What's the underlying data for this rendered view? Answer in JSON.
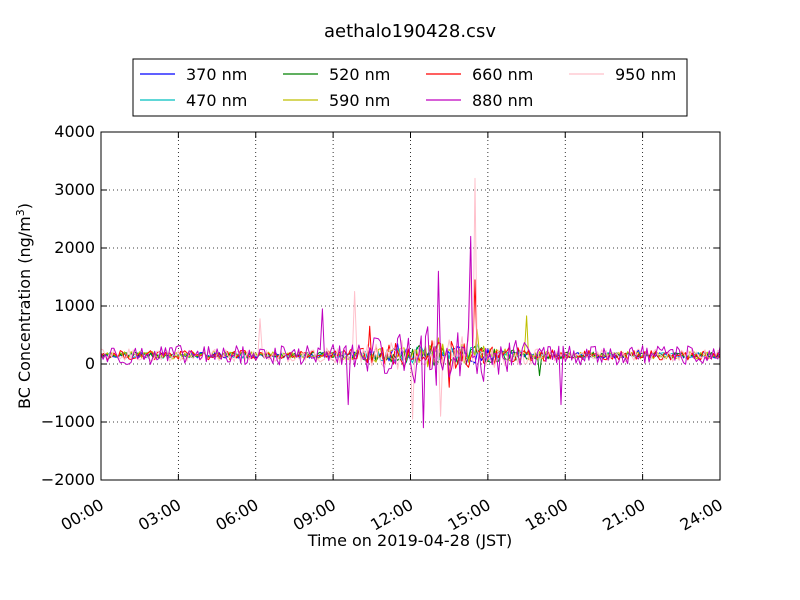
{
  "chart_data": {
    "type": "line",
    "title": "aethalo190428.csv",
    "xlabel": "Time on 2019-04-28 (JST)",
    "ylabel": "BC Concentration (ng/m",
    "ylabel_sup": "3",
    "ylabel_close": ")",
    "xlim": [
      "00:00",
      "24:00"
    ],
    "ylim": [
      -2000,
      4000
    ],
    "x_ticks": [
      "00:00",
      "03:00",
      "06:00",
      "09:00",
      "12:00",
      "15:00",
      "18:00",
      "21:00",
      "24:00"
    ],
    "y_ticks": [
      "4000",
      "3000",
      "2000",
      "1000",
      "0",
      "−1000",
      "−2000"
    ],
    "y_tick_values": [
      4000,
      3000,
      2000,
      1000,
      0,
      -1000,
      -2000
    ],
    "grid": true,
    "legend_position": "top, above plot",
    "sampling_interval_minutes": 5,
    "series": [
      {
        "name": "370 nm",
        "color": "#0000ff",
        "base": 150,
        "noise": 70,
        "spikes": [
          [
            11.5,
            350
          ],
          [
            13.8,
            300
          ],
          [
            20.8,
            250
          ]
        ]
      },
      {
        "name": "470 nm",
        "color": "#00bfbf",
        "base": 150,
        "noise": 70,
        "spikes": [
          [
            12.4,
            300
          ],
          [
            14.6,
            350
          ]
        ]
      },
      {
        "name": "520 nm",
        "color": "#008000",
        "base": 150,
        "noise": 80,
        "spikes": [
          [
            12.8,
            350
          ],
          [
            16.2,
            250
          ],
          [
            17.0,
            -200
          ]
        ]
      },
      {
        "name": "590 nm",
        "color": "#bfbf00",
        "base": 150,
        "noise": 90,
        "spikes": [
          [
            14.6,
            600
          ],
          [
            16.5,
            830
          ],
          [
            13.1,
            450
          ]
        ]
      },
      {
        "name": "660 nm",
        "color": "#ff0000",
        "base": 150,
        "noise": 120,
        "spikes": [
          [
            14.5,
            1450
          ],
          [
            13.5,
            -400
          ],
          [
            10.4,
            650
          ]
        ]
      },
      {
        "name": "880 nm",
        "color": "#bf00bf",
        "base": 150,
        "noise": 240,
        "spikes": [
          [
            12.5,
            -1100
          ],
          [
            13.1,
            1600
          ],
          [
            14.3,
            2200
          ],
          [
            14.8,
            -300
          ],
          [
            9.6,
            -700
          ],
          [
            17.8,
            -700
          ],
          [
            8.6,
            950
          ]
        ]
      },
      {
        "name": "950 nm",
        "color": "#ffc0cb",
        "base": 150,
        "noise": 160,
        "spikes": [
          [
            14.5,
            3200
          ],
          [
            14.3,
            1800
          ],
          [
            13.2,
            -900
          ],
          [
            12.1,
            -950
          ],
          [
            9.8,
            1250
          ],
          [
            6.2,
            780
          ]
        ]
      }
    ]
  }
}
